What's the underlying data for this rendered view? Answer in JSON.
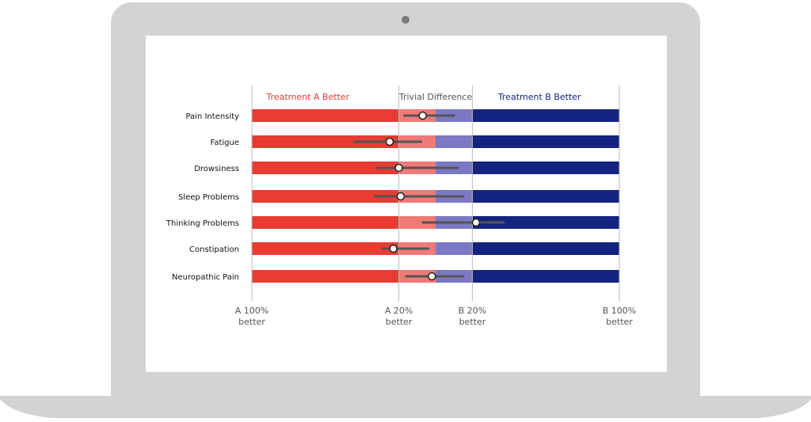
{
  "chart_data": {
    "type": "forest",
    "regions": [
      {
        "label": "Treatment A Better",
        "color": "#e8392f"
      },
      {
        "label": "Trivial Difference",
        "color": "#555555"
      },
      {
        "label": "Treatment B Better",
        "color": "#13237f"
      }
    ],
    "x_ticks": [
      {
        "value": -100,
        "label": [
          "A 100%",
          "better"
        ]
      },
      {
        "value": -20,
        "label": [
          "A 20%",
          "better"
        ]
      },
      {
        "value": 20,
        "label": [
          "B 20%",
          "better"
        ]
      },
      {
        "value": 100,
        "label": [
          "B 100%",
          "better"
        ]
      }
    ],
    "xlim": [
      -100,
      100
    ],
    "trivial_band": [
      -20,
      20
    ],
    "rows": [
      {
        "name": "Pain Intensity",
        "estimate": -7,
        "low": -17,
        "high": 10
      },
      {
        "name": "Fatigue",
        "estimate": -25,
        "low": -44,
        "high": -8
      },
      {
        "name": "Drowsiness",
        "estimate": -20,
        "low": -32,
        "high": 12
      },
      {
        "name": "Sleep Problems",
        "estimate": -19,
        "low": -33,
        "high": 15
      },
      {
        "name": "Thinking Problems",
        "estimate": 22,
        "low": -7,
        "high": 37
      },
      {
        "name": "Constipation",
        "estimate": -23,
        "low": -29,
        "high": -4
      },
      {
        "name": "Neuropathic Pain",
        "estimate": -2,
        "low": -16,
        "high": 15
      }
    ],
    "colors": {
      "a_strong": "#e83c32",
      "a_light": "#ef7a78",
      "b_light": "#7b78c4",
      "b_strong": "#13237f",
      "ci_line": "#555555",
      "point_fill": "#ffffff",
      "point_stroke": "#222222",
      "gridline": "#bbbbbb"
    }
  }
}
